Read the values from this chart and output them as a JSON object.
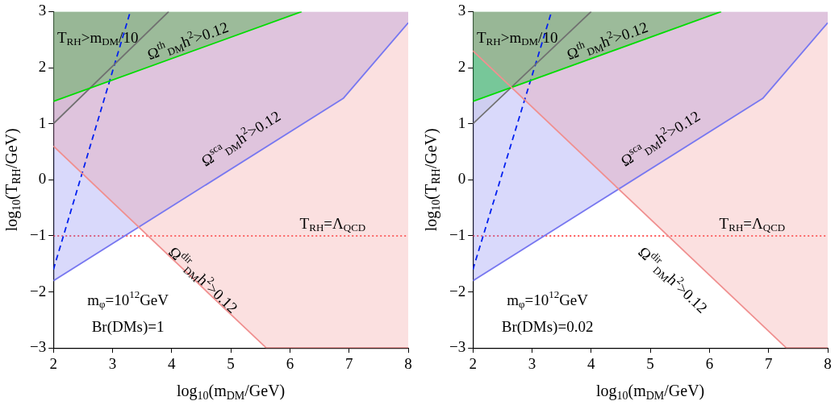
{
  "chart_data": [
    {
      "type": "line",
      "xlabel": "log$_{10}$(m$_{DM}$/GeV)",
      "ylabel": "log$_{10}$(T$_{RH}$/GeV)",
      "xlim": [
        2,
        8
      ],
      "ylim": [
        -3,
        3
      ],
      "xticks": [
        2,
        3,
        4,
        5,
        6,
        7,
        8
      ],
      "yticks": [
        -3,
        -2,
        -1,
        0,
        1,
        2,
        3
      ],
      "grid": false,
      "legend": false,
      "series": [
        {
          "color": "#f09090",
          "x": [
            2,
            5.6,
            8
          ],
          "values": [
            0.6,
            -3,
            -3
          ],
          "lower": [
            0.6,
            -3,
            -3
          ],
          "upper": [
            3,
            3,
            3
          ]
        },
        {
          "color": "#7878f0",
          "x": [
            2,
            6.9,
            8
          ],
          "values": [
            -1.8,
            1.45,
            2.8
          ],
          "lower": [
            -1.8,
            1.45,
            2.8
          ],
          "upper": [
            3,
            3,
            3
          ]
        },
        {
          "color": "#00dd00",
          "x": [
            2,
            6.2
          ],
          "values": [
            1.4,
            3
          ],
          "lower": [
            1.4,
            3
          ],
          "upper": [
            3,
            3
          ]
        },
        {
          "color": "#707070",
          "x": [
            2,
            3.95
          ],
          "values": [
            1,
            3
          ],
          "lower": [
            1,
            3
          ],
          "upper": [
            3,
            3
          ]
        },
        {
          "color": "#0020f0",
          "line_style": "dashed",
          "x": [
            2,
            3.3
          ],
          "values": [
            -1.6,
            3
          ]
        }
      ],
      "ref_lines": [
        {
          "axis": "y",
          "value": -1,
          "label": "T$_{RH}$=Λ$_{QCD}$",
          "color": "#ff2020",
          "line_style": "dotted"
        }
      ],
      "annotations": [
        "T$_{RH}$>m$_{DM}$/10",
        "Ω$^{th}$$_{DM}$h$^{2}$>0.12",
        "Ω$^{sca}$$_{DM}$h$^{2}$>0.12",
        "Ω$^{dir}$$_{DM}$h$^{2}$>0.12",
        "m$_{φ}$=10$^{12}$GeV",
        "Br(DMs)=1"
      ]
    },
    {
      "type": "line",
      "xlabel": "log$_{10}$(m$_{DM}$/GeV)",
      "ylabel": "log$_{10}$(T$_{RH}$/GeV)",
      "xlim": [
        2,
        8
      ],
      "ylim": [
        -3,
        3
      ],
      "xticks": [
        2,
        3,
        4,
        5,
        6,
        7,
        8
      ],
      "yticks": [
        -3,
        -2,
        -1,
        0,
        1,
        2,
        3
      ],
      "grid": false,
      "legend": false,
      "series": [
        {
          "color": "#f09090",
          "x": [
            2,
            7.3,
            8
          ],
          "values": [
            2.3,
            -3,
            -3
          ],
          "lower": [
            2.3,
            -3,
            -3
          ],
          "upper": [
            3,
            3,
            3
          ]
        },
        {
          "color": "#7878f0",
          "x": [
            2,
            6.9,
            8
          ],
          "values": [
            -1.8,
            1.45,
            2.8
          ],
          "lower": [
            -1.8,
            1.45,
            2.8
          ],
          "upper": [
            3,
            3,
            3
          ]
        },
        {
          "color": "#00dd00",
          "x": [
            2,
            6.2
          ],
          "values": [
            1.4,
            3
          ],
          "lower": [
            1.4,
            3
          ],
          "upper": [
            3,
            3
          ]
        },
        {
          "color": "#707070",
          "x": [
            2,
            4
          ],
          "values": [
            1,
            3
          ],
          "lower": [
            1,
            3
          ],
          "upper": [
            3,
            3
          ]
        },
        {
          "color": "#0020f0",
          "line_style": "dashed",
          "x": [
            2,
            3.33
          ],
          "values": [
            -1.6,
            3
          ]
        }
      ],
      "ref_lines": [
        {
          "axis": "y",
          "value": -1,
          "label": "T$_{RH}$=Λ$_{QCD}$",
          "color": "#ff2020",
          "line_style": "dotted"
        }
      ],
      "annotations": [
        "T$_{RH}$>m$_{DM}$/10",
        "Ω$^{th}$$_{DM}$h$^{2}$>0.12",
        "Ω$^{sca}$$_{DM}$h$^{2}$>0.12",
        "Ω$^{dir}$$_{DM}$h$^{2}$>0.12",
        "m$_{φ}$=10$^{12}$GeV",
        "Br(DMs)=0.02"
      ]
    }
  ]
}
